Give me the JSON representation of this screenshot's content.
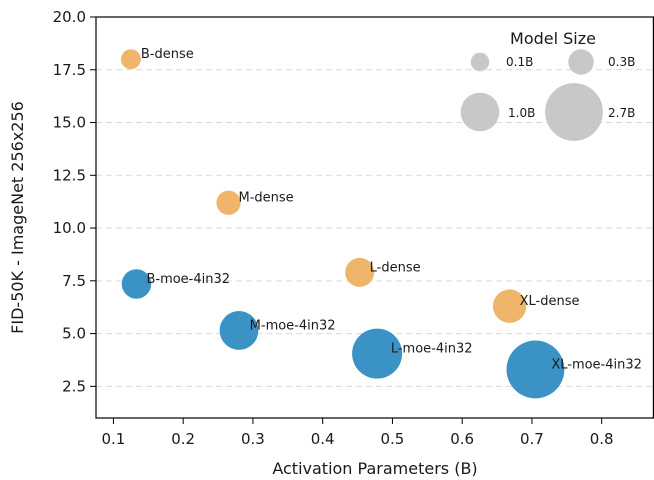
{
  "chart_data": {
    "type": "scatter",
    "title": "",
    "xlabel": "Activation Parameters (B)",
    "ylabel": "FID-50K - ImageNet 256x256",
    "xlim": [
      0.075,
      0.875
    ],
    "ylim": [
      1.0,
      20.0
    ],
    "xticks": [
      "0.1",
      "0.2",
      "0.3",
      "0.4",
      "0.5",
      "0.6",
      "0.7",
      "0.8"
    ],
    "yticks": [
      "2.5",
      "5.0",
      "7.5",
      "10.0",
      "12.5",
      "15.0",
      "17.5",
      "20.0"
    ],
    "grid": "horizontal dashed",
    "colors": {
      "dense": "#efb66b",
      "moe": "#3b93c5",
      "legend": "#c8c8c8"
    },
    "series": [
      {
        "group": "dense",
        "points": [
          {
            "label": "B-dense",
            "x": 0.125,
            "y": 18.0,
            "size_b": 0.13
          },
          {
            "label": "M-dense",
            "x": 0.265,
            "y": 11.2,
            "size_b": 0.26
          },
          {
            "label": "L-dense",
            "x": 0.453,
            "y": 7.9,
            "size_b": 0.45
          },
          {
            "label": "XL-dense",
            "x": 0.668,
            "y": 6.3,
            "size_b": 0.67
          }
        ]
      },
      {
        "group": "moe",
        "points": [
          {
            "label": "B-moe-4in32",
            "x": 0.133,
            "y": 7.35,
            "size_b": 0.47
          },
          {
            "label": "M-moe-4in32",
            "x": 0.28,
            "y": 5.15,
            "size_b": 1.0
          },
          {
            "label": "L-moe-4in32",
            "x": 0.478,
            "y": 4.05,
            "size_b": 1.9
          },
          {
            "label": "XL-moe-4in32",
            "x": 0.705,
            "y": 3.3,
            "size_b": 2.7
          }
        ]
      }
    ],
    "legend": {
      "title": "Model Size",
      "position": "top-right",
      "entries": [
        {
          "label": "0.1B",
          "size_b": 0.1
        },
        {
          "label": "0.3B",
          "size_b": 0.3
        },
        {
          "label": "1.0B",
          "size_b": 1.0
        },
        {
          "label": "2.7B",
          "size_b": 2.7
        }
      ]
    }
  }
}
